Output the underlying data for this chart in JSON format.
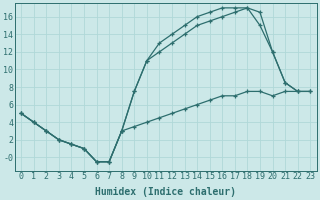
{
  "xlabel": "Humidex (Indice chaleur)",
  "xlim": [
    -0.5,
    23.5
  ],
  "ylim": [
    -1.5,
    17.5
  ],
  "xticks": [
    0,
    1,
    2,
    3,
    4,
    5,
    6,
    7,
    8,
    9,
    10,
    11,
    12,
    13,
    14,
    15,
    16,
    17,
    18,
    19,
    20,
    21,
    22,
    23
  ],
  "yticks": [
    0,
    2,
    4,
    6,
    8,
    10,
    12,
    14,
    16
  ],
  "ytick_labels": [
    "-0",
    "2",
    "4",
    "6",
    "8",
    "10",
    "12",
    "14",
    "16"
  ],
  "line1_x": [
    0,
    1,
    2,
    3,
    4,
    5,
    6,
    7,
    8,
    9,
    10,
    11,
    12,
    13,
    14,
    15,
    16,
    17,
    18,
    19,
    20,
    21,
    22
  ],
  "line1_y": [
    5,
    4,
    3,
    2,
    1.5,
    1,
    -0.5,
    -0.5,
    3,
    7.5,
    11,
    13,
    14,
    15,
    16,
    16.5,
    17,
    17,
    17,
    16.5,
    12,
    8.5,
    7.5
  ],
  "line2_x": [
    0,
    1,
    2,
    3,
    4,
    5,
    6,
    7,
    8,
    9,
    10,
    11,
    12,
    13,
    14,
    15,
    16,
    17,
    18,
    19,
    20,
    21,
    22,
    23
  ],
  "line2_y": [
    5,
    4,
    3,
    2,
    1.5,
    1,
    -0.5,
    -0.5,
    3,
    3.5,
    4,
    4.5,
    5,
    5.5,
    6,
    6.5,
    7,
    7,
    7.5,
    7.5,
    7,
    7.5,
    7.5,
    7.5
  ],
  "line3_x": [
    0,
    1,
    2,
    3,
    4,
    5,
    6,
    7,
    8,
    9,
    10,
    11,
    12,
    13,
    14,
    15,
    16,
    17,
    18,
    19,
    20,
    21,
    22,
    23
  ],
  "line3_y": [
    5,
    4,
    3,
    2,
    1.5,
    1,
    -0.5,
    -0.5,
    3,
    7.5,
    11,
    12,
    13,
    14,
    15,
    15.5,
    16,
    16.5,
    17,
    15,
    12,
    8.5,
    7.5,
    7.5
  ],
  "color": "#2d6e6e",
  "bg_color": "#cce8e8",
  "grid_color": "#b0d8d8",
  "tick_fontsize": 6,
  "label_fontsize": 7
}
